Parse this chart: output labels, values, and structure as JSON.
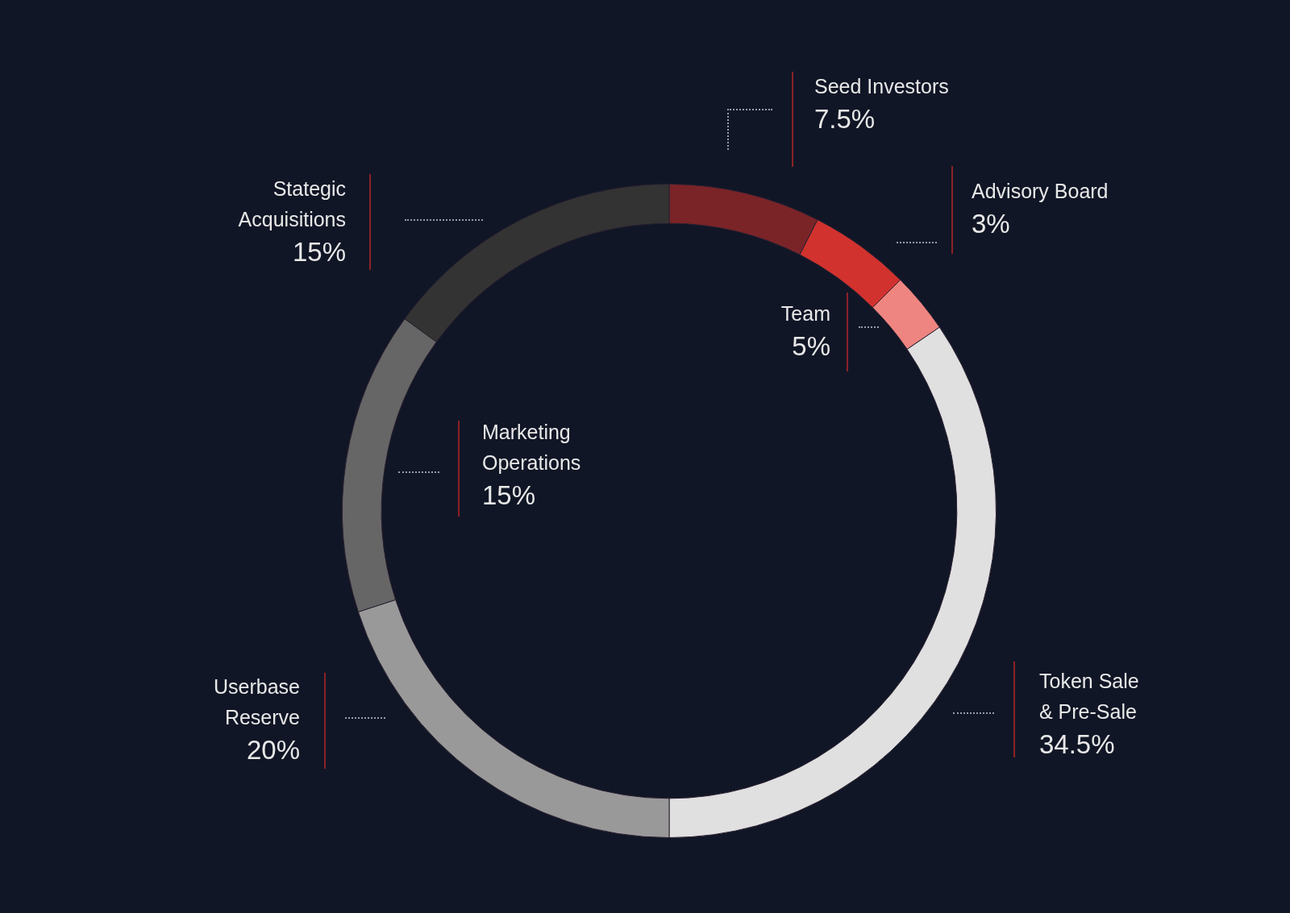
{
  "chart_data": {
    "type": "donut",
    "categories": [
      "Seed Investors",
      "Team",
      "Advisory Board",
      "Token Sale & Pre-Sale",
      "Userbase Reserve",
      "Marketing Operations",
      "Stategic Acquisitions"
    ],
    "values": [
      7.5,
      5,
      3,
      34.5,
      20,
      15,
      15
    ],
    "colors": [
      "#7a2428",
      "#d1322e",
      "#ee8580",
      "#e0e0e0",
      "#999999",
      "#666666",
      "#333333"
    ],
    "value_labels": [
      "7.5%",
      "5%",
      "3%",
      "34.5%",
      "20%",
      "15%",
      "15%"
    ]
  }
}
